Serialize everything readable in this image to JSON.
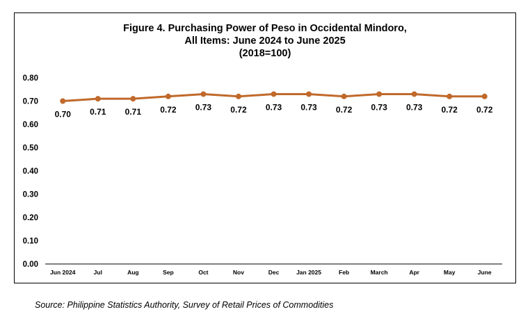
{
  "chart_data": {
    "type": "line",
    "title_lines": [
      "Figure 4. Purchasing Power of Peso in Occidental Mindoro,",
      "All Items: June 2024 to June 2025",
      "(2018=100)"
    ],
    "categories": [
      "Jun 2024",
      "Jul",
      "Aug",
      "Sep",
      "Oct",
      "Nov",
      "Dec",
      "Jan 2025",
      "Feb",
      "March",
      "Apr",
      "May",
      "June"
    ],
    "values": [
      0.7,
      0.71,
      0.71,
      0.72,
      0.73,
      0.72,
      0.73,
      0.73,
      0.72,
      0.73,
      0.73,
      0.72,
      0.72
    ],
    "data_labels": [
      "0.70",
      "0.71",
      "0.71",
      "0.72",
      "0.73",
      "0.72",
      "0.73",
      "0.73",
      "0.72",
      "0.73",
      "0.73",
      "0.72",
      "0.72"
    ],
    "yticks": [
      "0.00",
      "0.10",
      "0.20",
      "0.30",
      "0.40",
      "0.50",
      "0.60",
      "0.70",
      "0.80"
    ],
    "ylim": [
      0,
      0.8
    ],
    "grid": false,
    "legend": "none",
    "line_color": "#C0692B"
  },
  "source": "Source: Philippine Statistics Authority, Survey of Retail Prices of Commodities"
}
